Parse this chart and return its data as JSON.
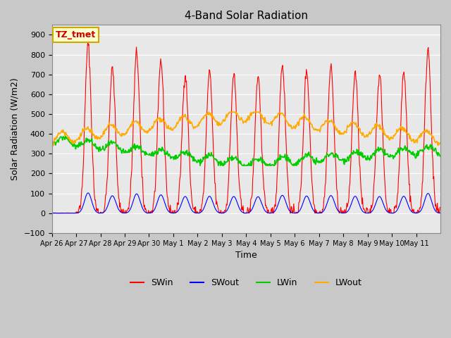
{
  "title": "4-Band Solar Radiation",
  "xlabel": "Time",
  "ylabel": "Solar Radiation (W/m2)",
  "ylim": [
    -100,
    950
  ],
  "yticks": [
    -100,
    0,
    100,
    200,
    300,
    400,
    500,
    600,
    700,
    800,
    900
  ],
  "annotation_label": "TZ_tmet",
  "annotation_color": "#cc0000",
  "annotation_bg": "#ffffcc",
  "annotation_border": "#ccaa00",
  "colors": {
    "SWin": "#ff0000",
    "SWout": "#0000ff",
    "LWin": "#00cc00",
    "LWout": "#ffaa00"
  },
  "legend_labels": [
    "SWin",
    "SWout",
    "LWin",
    "LWout"
  ],
  "fig_bg_color": "#c8c8c8",
  "plot_bg": "#e8e8e8",
  "n_days": 16,
  "hours_per_day": 24,
  "dt_hours": 0.5,
  "day_labels": [
    "Apr 26",
    "Apr 27",
    "Apr 28",
    "Apr 29",
    "Apr 30",
    "May 1",
    "May 2",
    "May 3",
    "May 4",
    "May 5",
    "May 6",
    "May 7",
    "May 8",
    "May 9",
    "May 10",
    "May 11"
  ],
  "swin_peaks": [
    0,
    850,
    730,
    810,
    770,
    700,
    710,
    700,
    690,
    750,
    720,
    740,
    710,
    700,
    710,
    830
  ]
}
